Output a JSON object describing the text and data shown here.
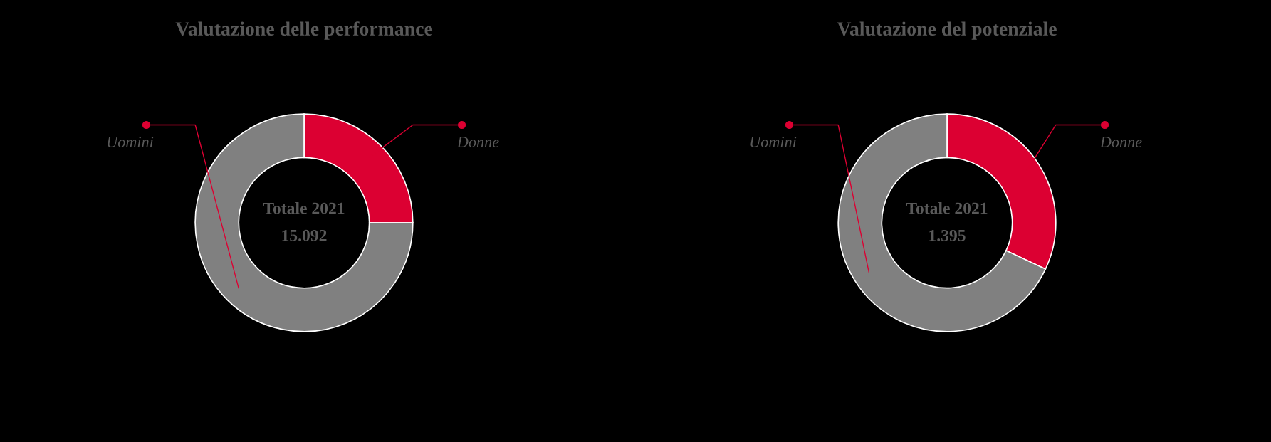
{
  "chart_data": [
    {
      "type": "donut",
      "title": "Valutazione delle performance",
      "categories": [
        "Donne",
        "Uomini"
      ],
      "values": [
        25,
        75
      ],
      "colors": [
        "#dc0032",
        "#808080"
      ],
      "annotations": [
        "Totale 2021",
        "15.092"
      ]
    },
    {
      "type": "donut",
      "title": "Valutazione del potenziale",
      "categories": [
        "Donne",
        "Uomini"
      ],
      "values": [
        32,
        68
      ],
      "colors": [
        "#dc0032",
        "#808080"
      ],
      "annotations": [
        "Totale 2021",
        "1.395"
      ]
    }
  ]
}
